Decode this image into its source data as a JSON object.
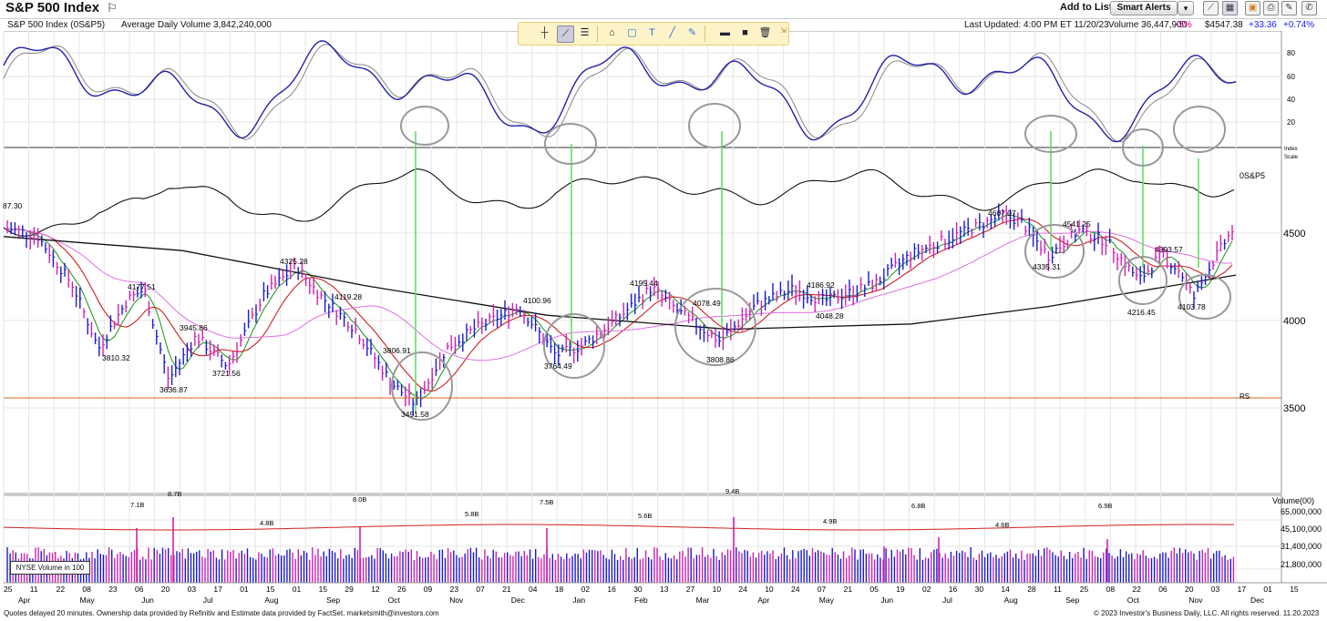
{
  "header": {
    "title": "S&P 500 Index",
    "flag_icon": "flag-icon",
    "add_to_list": "Add to List:",
    "smart_alerts": "Smart Alerts",
    "dropdown_glyph": "▾",
    "icons": [
      "chart-line-icon",
      "grid-icon",
      "image-icon",
      "print-icon",
      "wrench-icon",
      "phone-icon"
    ]
  },
  "subheader": {
    "symbol": "S&P 500 Index   (0S&P5)",
    "avg_volume": "Average Daily Volume 3,842,240,000",
    "last_updated": "Last Updated: 4:00 PM ET 11/20/23",
    "volume": "Volume 36,447,900",
    "vol_change": "-5%",
    "price": "$4547.38",
    "change_pts": "+33.36",
    "change_pct": "+0.74%"
  },
  "toolbar": {
    "tools": [
      "crosshair-icon",
      "trendline-icon",
      "list-icon",
      "paint-icon",
      "rectangle-icon",
      "text-icon",
      "line-icon",
      "pencil-icon",
      "hline-icon",
      "fill-icon",
      "trash-icon"
    ]
  },
  "chart": {
    "stoch_ticks": [
      "80",
      "60",
      "40",
      "20"
    ],
    "price_ticks": [
      "4500",
      "4000",
      "3500"
    ],
    "index_scale_label": "Index\nScale",
    "series_label": "0S&P5",
    "rs_label": "RS",
    "volume_axis_title": "Volume(00)",
    "volume_ticks": [
      "65,000,000",
      "45,100,000",
      "31,400,000",
      "21,800,000"
    ],
    "nyse_label": "NYSE Volume in 100",
    "price_annotations": [
      {
        "t": "87.30"
      },
      {
        "t": "4177.51"
      },
      {
        "t": "3810.32"
      },
      {
        "t": "3945.86"
      },
      {
        "t": "3636.87"
      },
      {
        "t": "3721.56"
      },
      {
        "t": "4325.28"
      },
      {
        "t": "4119.28"
      },
      {
        "t": "3806.91"
      },
      {
        "t": "3491.58"
      },
      {
        "t": "4100.96"
      },
      {
        "t": "3764.49"
      },
      {
        "t": "4195.44"
      },
      {
        "t": "4078.49"
      },
      {
        "t": "3808.86"
      },
      {
        "t": "4186.92"
      },
      {
        "t": "4048.28"
      },
      {
        "t": "4607.07"
      },
      {
        "t": "4541.25"
      },
      {
        "t": "4335.31"
      },
      {
        "t": "4393.57"
      },
      {
        "t": "4216.45"
      },
      {
        "t": "4103.78"
      }
    ],
    "volume_annotations": [
      "7.1B",
      "8.7B",
      "4.8B",
      "8.0B",
      "5.8B",
      "7.5B",
      "5.6B",
      "9.4B",
      "4.9B",
      "6.8B",
      "4.6B",
      "6.9B"
    ],
    "x_day_labels": [
      "25",
      "11",
      "22",
      "08",
      "23",
      "06",
      "20",
      "03",
      "17",
      "01",
      "15",
      "01",
      "15",
      "29",
      "12",
      "26",
      "09",
      "23",
      "07",
      "21",
      "04",
      "18",
      "02",
      "16",
      "30",
      "13",
      "27",
      "10",
      "24",
      "10",
      "24",
      "07",
      "21",
      "05",
      "19",
      "02",
      "16",
      "30",
      "14",
      "28",
      "11",
      "25",
      "08",
      "22",
      "06",
      "20",
      "03",
      "17",
      "01",
      "15"
    ],
    "x_month_labels": [
      "Apr",
      "May",
      "Jun",
      "Jul",
      "Aug",
      "Sep",
      "Oct",
      "Nov",
      "Dec",
      "Jan",
      "Feb",
      "Mar",
      "Apr",
      "May",
      "Jun",
      "Jul",
      "Aug",
      "Sep",
      "Oct",
      "Nov",
      "Dec"
    ]
  },
  "footer": {
    "left": "Quotes delayed 20 minutes. Ownership data provided by Refinitiv and Estimate data provided by FactSet. marketsmith@investors.com",
    "right": "© 2023 Investor's Business Daily, LLC. All rights reserved.      11.20.2023"
  },
  "colors": {
    "stoch_blue": "#2222aa",
    "stoch_gray": "#888888",
    "ma_green": "#2b9a2b",
    "ma_red": "#d02020",
    "ma_black": "#111111",
    "ma_pink": "#e070e0",
    "bar_blue": "#1a1ad0",
    "bar_pink": "#d020b0",
    "green_line": "#66dd66"
  }
}
